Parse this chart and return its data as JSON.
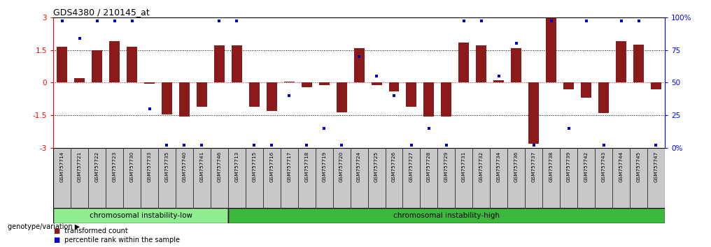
{
  "title": "GDS4380 / 210145_at",
  "samples": [
    "GSM757714",
    "GSM757721",
    "GSM757722",
    "GSM757723",
    "GSM757730",
    "GSM757733",
    "GSM757735",
    "GSM757740",
    "GSM757741",
    "GSM757746",
    "GSM757713",
    "GSM757715",
    "GSM757716",
    "GSM757717",
    "GSM757718",
    "GSM757719",
    "GSM757720",
    "GSM757724",
    "GSM757725",
    "GSM757726",
    "GSM757727",
    "GSM757728",
    "GSM757729",
    "GSM757731",
    "GSM757732",
    "GSM757734",
    "GSM757736",
    "GSM757737",
    "GSM757738",
    "GSM757739",
    "GSM757742",
    "GSM757743",
    "GSM757744",
    "GSM757745",
    "GSM757747"
  ],
  "bar_values": [
    1.65,
    0.2,
    1.5,
    1.9,
    1.65,
    -0.05,
    -1.45,
    -1.55,
    -1.1,
    1.7,
    1.7,
    -1.1,
    -1.3,
    0.05,
    -0.2,
    -0.1,
    -1.35,
    1.6,
    -0.1,
    -0.4,
    -1.1,
    -1.55,
    -1.55,
    1.85,
    1.7,
    0.1,
    1.6,
    -2.8,
    3.0,
    -0.3,
    -0.7,
    -1.4,
    1.9,
    1.75,
    -0.3
  ],
  "percentile_values": [
    97,
    84,
    97,
    97,
    97,
    30,
    2,
    2,
    2,
    97,
    97,
    2,
    2,
    40,
    2,
    15,
    2,
    70,
    55,
    40,
    2,
    15,
    2,
    97,
    97,
    55,
    80,
    2,
    97,
    15,
    97,
    2,
    97,
    97,
    2
  ],
  "group1_label": "chromosomal instability-low",
  "group1_count": 10,
  "group2_label": "chromosomal instability-high",
  "group2_count": 25,
  "group1_color": "#90EE90",
  "group2_color": "#3CB83C",
  "bar_color": "#8B1A1A",
  "dot_color": "#0000CC",
  "tick_bg_color": "#C8C8C8",
  "ylim_left": [
    -3,
    3
  ],
  "ylim_right": [
    0,
    100
  ],
  "yticks_left": [
    -3,
    -1.5,
    0,
    1.5,
    3
  ],
  "yticks_right": [
    0,
    25,
    50,
    75,
    100
  ],
  "yticklabels_left": [
    "-3",
    "-1.5",
    "0",
    "1.5",
    "3"
  ],
  "yticklabels_right": [
    "0%",
    "25",
    "50",
    "75",
    "100%"
  ],
  "background_color": "#ffffff",
  "legend_items": [
    "transformed count",
    "percentile rank within the sample"
  ],
  "genotype_label": "genotype/variation"
}
